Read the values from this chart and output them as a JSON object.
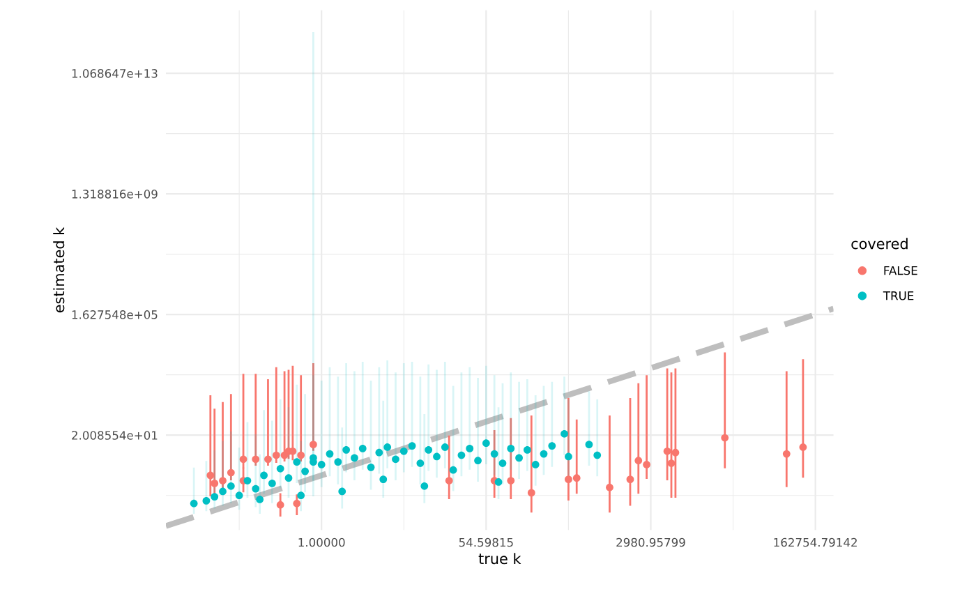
{
  "chart_data": {
    "type": "scatter",
    "xlabel": "true k",
    "ylabel": "estimated k",
    "legend_title": "covered",
    "legend": "right",
    "grid": true,
    "marker": "circle",
    "log": "xy",
    "xlim": [
      0.0228,
      252750
    ],
    "ylim": [
      0.0169,
      1174000000000000.0
    ],
    "xticks": [
      {
        "value": 0.1353,
        "label": null
      },
      {
        "value": 1,
        "label": "1.00000"
      },
      {
        "value": 7.389,
        "label": null
      },
      {
        "value": 54.59815,
        "label": "54.59815"
      },
      {
        "value": 403.4,
        "label": null
      },
      {
        "value": 2980.95799,
        "label": "2980.95799"
      },
      {
        "value": 22026,
        "label": null
      },
      {
        "value": 162754.79142,
        "label": "162754.79142"
      }
    ],
    "yticks": [
      {
        "value": 0.2231,
        "label": null
      },
      {
        "value": 20.08554,
        "label": "2.008554e+01"
      },
      {
        "value": 1808,
        "label": null
      },
      {
        "value": 162754.8,
        "label": "1.627548e+05"
      },
      {
        "value": 14620000,
        "label": null
      },
      {
        "value": 1318816000,
        "label": "1.318816e+09"
      },
      {
        "value": 118400000000,
        "label": null
      },
      {
        "value": 10686470000000,
        "label": "1.068647e+13"
      }
    ],
    "series": [
      {
        "type": "line",
        "color": "#bebebe",
        "line_style": "dashed",
        "marker": "none",
        "x": [
          0.0228,
          252750
        ],
        "values": [
          0.0228,
          252750
        ]
      },
      {
        "name": "FALSE",
        "color": "#f8766d",
        "x": [
          18034,
          80821,
          120572,
          4447,
          5432,
          4915,
          2697,
          2208,
          1808,
          1097,
          492.7,
          403.4,
          164.0,
          99.48,
          66.69,
          22.2,
          0.8187,
          0.6065,
          0.4966,
          0.4493,
          0.4066,
          0.3329,
          0.2725,
          0.2019,
          0.1496,
          0.1108,
          0.0907,
          0.0743,
          0.0672,
          0.3679,
          0.5488,
          0.1496
        ],
        "values": [
          16.44,
          4.953,
          8.166,
          6.05,
          5.474,
          2.46,
          2.226,
          3.004,
          0.7408,
          0.4066,
          0.8187,
          0.7408,
          0.2725,
          0.6703,
          0.6703,
          0.6703,
          9.974,
          4.482,
          6.05,
          6.05,
          4.482,
          4.482,
          3.32,
          3.32,
          3.32,
          1.221,
          0.6703,
          0.5488,
          1,
          0.1108,
          0.1225,
          0.6703
        ],
        "errors": [
          [
            1.822,
            8955
          ],
          [
            0.4493,
            2208
          ],
          [
            0.9048,
            5432
          ],
          [
            0.7408,
            2697
          ],
          [
            0.2019,
            2697
          ],
          [
            0.2019,
            1998
          ],
          [
            0.8187,
            1636
          ],
          [
            0.2725,
            897.8
          ],
          [
            0.1108,
            298.9
          ],
          [
            0.0672,
            81.45
          ],
          [
            0.2725,
            60.34
          ],
          [
            0.1653,
            298.9
          ],
          [
            0.0672,
            81.45
          ],
          [
            0.1827,
            66.69
          ],
          [
            0.2019,
            27.11
          ],
          [
            0.1827,
            18.17
          ],
          [
            6.686,
            4024
          ],
          [
            3.004,
            1636
          ],
          [
            3.32,
            3294
          ],
          [
            3.669,
            2440
          ],
          [
            3.004,
            2208
          ],
          [
            2.718,
            2981
          ],
          [
            2.226,
            1212
          ],
          [
            2.226,
            1808
          ],
          [
            1.822,
            1808
          ],
          [
            0.7408,
            403.4
          ],
          [
            0.3679,
            221.4
          ],
          [
            0.2725,
            134.3
          ],
          [
            0.2231,
            365.0
          ],
          [
            0.0498,
            0.2466
          ],
          [
            0.055,
            0.2231
          ],
          [
            0.3012,
            1.649
          ]
        ]
      },
      {
        "name": "TRUE",
        "color": "#00bfc4",
        "x": [
          0.045,
          0.0608,
          0.0743,
          0.0907,
          0.1108,
          0.1353,
          0.1653,
          0.2019,
          0.2466,
          0.3012,
          0.3679,
          0.4493,
          0.5488,
          0.6703,
          0.8187,
          1,
          1.221,
          1.492,
          1.822,
          2.226,
          2.718,
          3.32,
          4.055,
          4.953,
          6.05,
          7.389,
          9.025,
          11.02,
          13.46,
          16.44,
          20.09,
          24.53,
          29.96,
          36.6,
          44.7,
          54.6,
          66.69,
          81.45,
          99.48,
          121.5,
          148.4,
          181.3,
          221.4,
          270.4,
          365.0,
          403.4,
          665.1,
          812.4,
          0.6065,
          1.649,
          12.18,
          73.7,
          4.482,
          0.2231,
          0.8187
        ],
        "values": [
          0.1225,
          0.1496,
          0.2019,
          0.3012,
          0.4493,
          0.2231,
          0.6703,
          0.3679,
          1,
          0.5488,
          1.649,
          0.8187,
          2.718,
          1.35,
          3.669,
          2.226,
          4.953,
          2.718,
          6.686,
          3.669,
          7.389,
          1.822,
          5.474,
          8.166,
          3.32,
          6.05,
          9.025,
          2.46,
          6.686,
          4.055,
          8.166,
          1.492,
          4.482,
          7.389,
          3.004,
          11.02,
          4.953,
          2.46,
          7.389,
          3.669,
          6.686,
          2.226,
          4.953,
          9.025,
          22.2,
          4.055,
          9.974,
          4.482,
          0.2231,
          0.3012,
          0.4493,
          0.6065,
          0.7408,
          0.1653,
          2.718
        ],
        "errors": [
          [
            0.0608,
            1.649
          ],
          [
            0.0743,
            2.718
          ],
          [
            0.0907,
            6.05
          ],
          [
            0.1108,
            12.18
          ],
          [
            0.1353,
            24.53
          ],
          [
            0.0821,
            7.389
          ],
          [
            0.2019,
            49.4
          ],
          [
            0.1003,
            20.09
          ],
          [
            0.2725,
            121.5
          ],
          [
            0.1353,
            54.6
          ],
          [
            0.4066,
            270.4
          ],
          [
            0.2019,
            148.4
          ],
          [
            0.6065,
            812.4
          ],
          [
            0.3012,
            403.4
          ],
          [
            0.7408,
            1636
          ],
          [
            0.4493,
            1097
          ],
          [
            1,
            2981
          ],
          [
            0.5488,
            1480
          ],
          [
            1.35,
            4024
          ],
          [
            0.7408,
            2208
          ],
          [
            1.649,
            4447
          ],
          [
            0.3679,
            1097
          ],
          [
            1.221,
            2981
          ],
          [
            1.822,
            4915
          ],
          [
            0.7408,
            1998
          ],
          [
            1.35,
            4024
          ],
          [
            2.014,
            4447
          ],
          [
            0.5488,
            1480
          ],
          [
            1.492,
            3641
          ],
          [
            0.9048,
            2440
          ],
          [
            1.822,
            4447
          ],
          [
            0.3329,
            735.1
          ],
          [
            1,
            1998
          ],
          [
            1.649,
            2981
          ],
          [
            0.6703,
            1339
          ],
          [
            2.46,
            3294
          ],
          [
            1.105,
            1636
          ],
          [
            0.5488,
            897.8
          ],
          [
            1.649,
            1998
          ],
          [
            0.8187,
            992.3
          ],
          [
            1.492,
            1212
          ],
          [
            0.4966,
            365.0
          ],
          [
            1.105,
            735.1
          ],
          [
            2.014,
            992.3
          ],
          [
            4.953,
            1480
          ],
          [
            0.9048,
            270.4
          ],
          [
            2.226,
            492.7
          ],
          [
            1,
            270.4
          ],
          [
            0.0743,
            12.18
          ],
          [
            0.0907,
            33.12
          ],
          [
            0.1353,
            90.02
          ],
          [
            0.1827,
            148.4
          ],
          [
            0.2019,
            244.7
          ],
          [
            0.0608,
            4.482
          ],
          [
            0.2231,
            214600000000000
          ]
        ]
      }
    ]
  }
}
